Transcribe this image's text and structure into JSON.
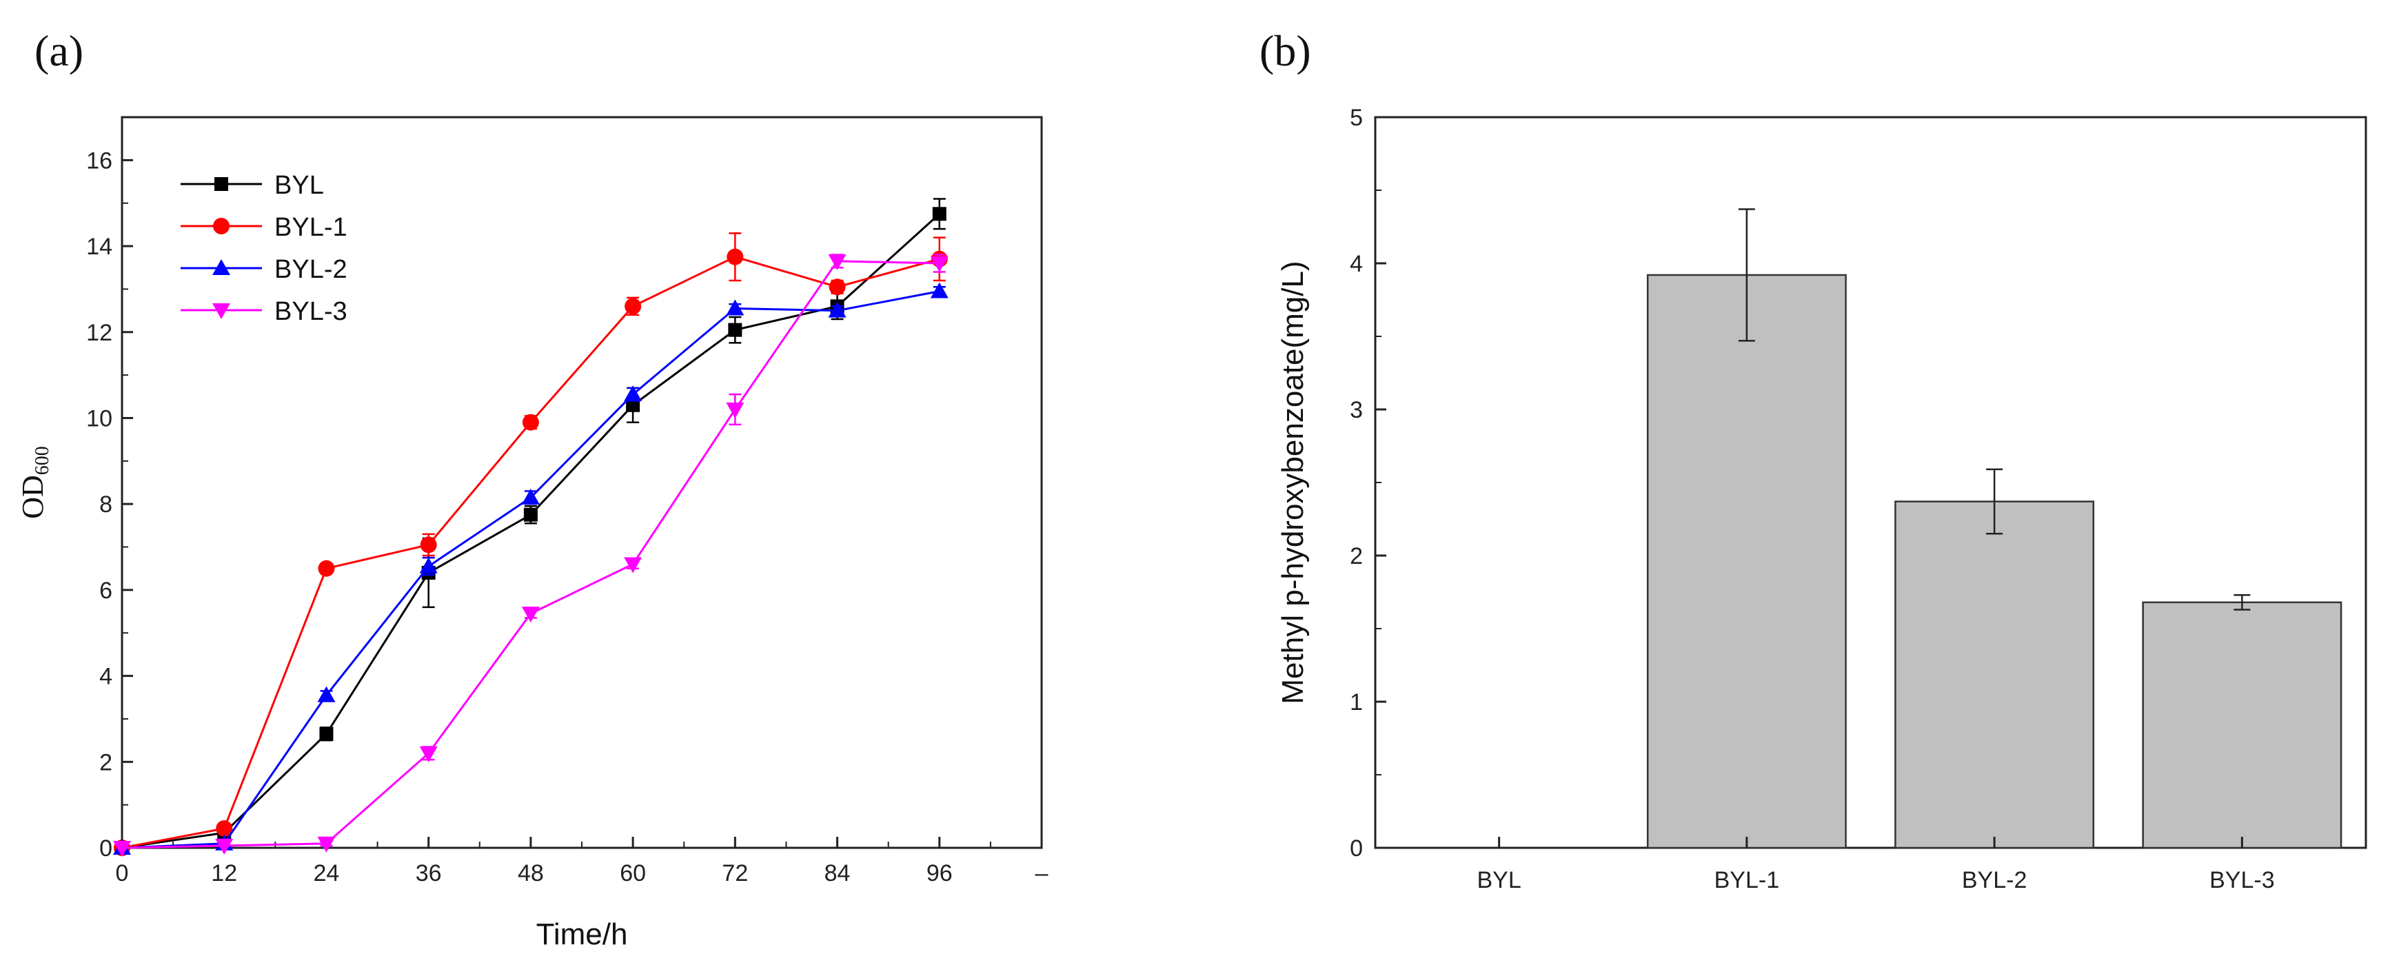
{
  "chart_data": [
    {
      "panel": "(a)",
      "type": "line",
      "title": "",
      "xlabel": "Time/h",
      "ylabel": {
        "main": "OD",
        "sub": "600"
      },
      "x": [
        0,
        12,
        24,
        36,
        48,
        60,
        72,
        84,
        96
      ],
      "xticks": [
        "0",
        "12",
        "24",
        "36",
        "48",
        "60",
        "72",
        "84",
        "96",
        "–"
      ],
      "xlim": [
        0,
        108
      ],
      "ylim": [
        0,
        17
      ],
      "yticks": [
        "0",
        "2",
        "4",
        "6",
        "8",
        "10",
        "12",
        "14",
        "16"
      ],
      "legend_position": "top-left",
      "series": [
        {
          "name": "BYL",
          "color": "#000000",
          "marker": "square",
          "values": [
            0,
            0.35,
            2.65,
            6.4,
            7.75,
            10.3,
            12.05,
            12.6,
            14.75
          ],
          "errors": [
            0,
            0.1,
            0.15,
            0.8,
            0.2,
            0.4,
            0.3,
            0.3,
            0.35
          ]
        },
        {
          "name": "BYL-1",
          "color": "#ff0000",
          "marker": "circle",
          "values": [
            0,
            0.45,
            6.5,
            7.05,
            9.9,
            12.6,
            13.75,
            13.05,
            13.7
          ],
          "errors": [
            0,
            0.05,
            0.1,
            0.25,
            0.15,
            0.2,
            0.55,
            0.15,
            0.5
          ]
        },
        {
          "name": "BYL-2",
          "color": "#0000ff",
          "marker": "triangle-up",
          "values": [
            0,
            0.1,
            3.55,
            6.55,
            8.15,
            10.55,
            12.55,
            12.5,
            12.95
          ],
          "errors": [
            0,
            0.05,
            0.1,
            0.2,
            0.15,
            0.15,
            0.1,
            0.1,
            0.1
          ]
        },
        {
          "name": "BYL-3",
          "color": "#ff00ff",
          "marker": "triangle-down",
          "values": [
            0,
            0.05,
            0.1,
            2.2,
            5.45,
            6.6,
            10.2,
            13.65,
            13.6
          ],
          "errors": [
            0,
            0,
            0.05,
            0.15,
            0.1,
            0.1,
            0.35,
            0.15,
            0.2
          ]
        }
      ]
    },
    {
      "panel": "(b)",
      "type": "bar",
      "title": "",
      "xlabel": "",
      "ylabel": "Methyl p-hydroxybenzoate(mg/L)",
      "categories": [
        "BYL",
        "BYL-1",
        "BYL-2",
        "BYL-3"
      ],
      "values": [
        0,
        3.92,
        2.37,
        1.68
      ],
      "errors": [
        0,
        0.45,
        0.22,
        0.05
      ],
      "ylim": [
        0,
        5
      ],
      "yticks": [
        "0",
        "1",
        "2",
        "3",
        "4",
        "5"
      ],
      "bar_color": "#c0c0c0"
    }
  ]
}
